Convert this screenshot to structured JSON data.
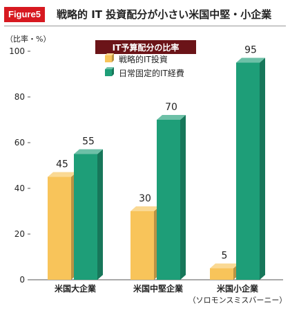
{
  "header": {
    "badge": "Figure5",
    "title": "戦略的 IT 投資配分が小さい米国中堅・小企業"
  },
  "chart_data": {
    "type": "bar",
    "title": "",
    "unit_label": "（比率・%）",
    "legend_title": "IT予算配分の比率",
    "ylim": [
      0,
      100
    ],
    "yticks": [
      0,
      20,
      40,
      60,
      80,
      100
    ],
    "grid": false,
    "legend_position": "top",
    "categories": [
      {
        "label": "米国大企業",
        "sublabel": ""
      },
      {
        "label": "米国中堅企業",
        "sublabel": ""
      },
      {
        "label": "米国小企業",
        "sublabel": "（ソロモンスミスバーニー）"
      }
    ],
    "series": [
      {
        "name": "戦略的IT投資",
        "color": "#f8c45a",
        "values": [
          45,
          30,
          5
        ]
      },
      {
        "name": "日常固定的IT経費",
        "color": "#1e9e78",
        "values": [
          55,
          70,
          95
        ]
      }
    ]
  }
}
